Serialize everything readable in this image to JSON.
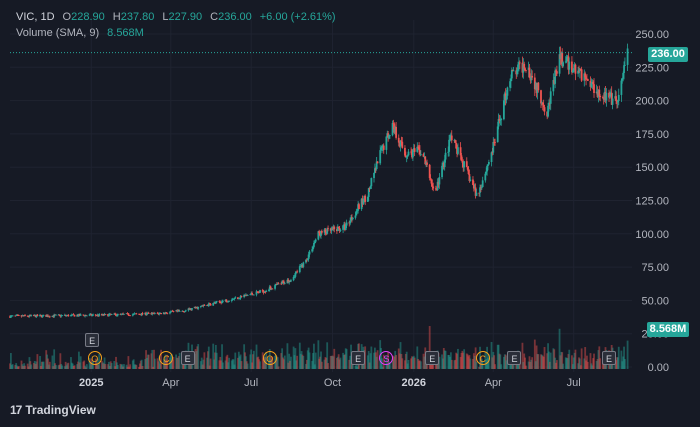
{
  "legend": {
    "symbol": "VIC",
    "interval": "1D",
    "open_label": "O",
    "open": "228.90",
    "high_label": "H",
    "high": "237.80",
    "low_label": "L",
    "low": "227.90",
    "close_label": "C",
    "close": "236.00",
    "change": "+6.00 (+2.61%)",
    "volume_title": "Volume (SMA, 9)",
    "volume_value": "8.568M"
  },
  "price_tag": "236.00",
  "volume_tag": "8.568M",
  "brand": {
    "logo": "17",
    "name": "TradingView"
  },
  "markers": [
    {
      "letter": "E",
      "kind": "e"
    },
    {
      "letter": "O",
      "kind": "o"
    },
    {
      "letter": "C",
      "kind": "c"
    },
    {
      "letter": "E",
      "kind": "e"
    },
    {
      "letter": "O",
      "kind": "o"
    },
    {
      "letter": "E",
      "kind": "e"
    },
    {
      "letter": "S",
      "kind": "s"
    },
    {
      "letter": "E",
      "kind": "e"
    },
    {
      "letter": "C",
      "kind": "c"
    },
    {
      "letter": "E",
      "kind": "e"
    },
    {
      "letter": "E",
      "kind": "e"
    }
  ],
  "colors": {
    "up": "#26a69a",
    "down": "#ef5350",
    "background": "#161a25",
    "grid": "#1f2330"
  },
  "chart_data": {
    "type": "candlestick",
    "y_ticks": [
      0,
      25,
      50,
      75,
      100,
      125,
      150,
      175,
      200,
      225,
      250
    ],
    "y_tick_labels": [
      "0.00",
      "25.00",
      "50.00",
      "75.00",
      "100.00",
      "125.00",
      "150.00",
      "175.00",
      "200.00",
      "225.00",
      "250.00"
    ],
    "ylim": [
      0,
      258
    ],
    "x_ticks": [
      {
        "label": "2025",
        "date": "2025-01-01",
        "bold": true
      },
      {
        "label": "Apr",
        "date": "2025-04-01",
        "bold": false
      },
      {
        "label": "Jul",
        "date": "2025-07-01",
        "bold": false
      },
      {
        "label": "Oct",
        "date": "2025-10-01",
        "bold": false
      },
      {
        "label": "2026",
        "date": "2026-01-01",
        "bold": true
      },
      {
        "label": "Apr",
        "date": "2026-04-01",
        "bold": false
      },
      {
        "label": "Jul",
        "date": "2026-07-01",
        "bold": false
      }
    ],
    "xlim": [
      "2024-10-01",
      "2026-09-05"
    ],
    "price_path": [
      {
        "date": "2024-10-01",
        "value": 38
      },
      {
        "date": "2025-01-15",
        "value": 39
      },
      {
        "date": "2025-03-15",
        "value": 40
      },
      {
        "date": "2025-04-15",
        "value": 42
      },
      {
        "date": "2025-05-15",
        "value": 47
      },
      {
        "date": "2025-06-15",
        "value": 52
      },
      {
        "date": "2025-07-15",
        "value": 57
      },
      {
        "date": "2025-08-15",
        "value": 66
      },
      {
        "date": "2025-09-01",
        "value": 80
      },
      {
        "date": "2025-09-15",
        "value": 100
      },
      {
        "date": "2025-10-15",
        "value": 105
      },
      {
        "date": "2025-11-10",
        "value": 130
      },
      {
        "date": "2025-11-25",
        "value": 162
      },
      {
        "date": "2025-12-08",
        "value": 182
      },
      {
        "date": "2025-12-22",
        "value": 160
      },
      {
        "date": "2026-01-10",
        "value": 162
      },
      {
        "date": "2026-01-25",
        "value": 130
      },
      {
        "date": "2026-02-12",
        "value": 172
      },
      {
        "date": "2026-02-28",
        "value": 150
      },
      {
        "date": "2026-03-14",
        "value": 128
      },
      {
        "date": "2026-04-01",
        "value": 165
      },
      {
        "date": "2026-04-20",
        "value": 218
      },
      {
        "date": "2026-05-08",
        "value": 228
      },
      {
        "date": "2026-06-01",
        "value": 192
      },
      {
        "date": "2026-06-15",
        "value": 232
      },
      {
        "date": "2026-07-10",
        "value": 220
      },
      {
        "date": "2026-08-01",
        "value": 205
      },
      {
        "date": "2026-08-20",
        "value": 198
      },
      {
        "date": "2026-08-31",
        "value": 236
      }
    ],
    "last_price": 236.0,
    "last_volume": "8.568M"
  }
}
